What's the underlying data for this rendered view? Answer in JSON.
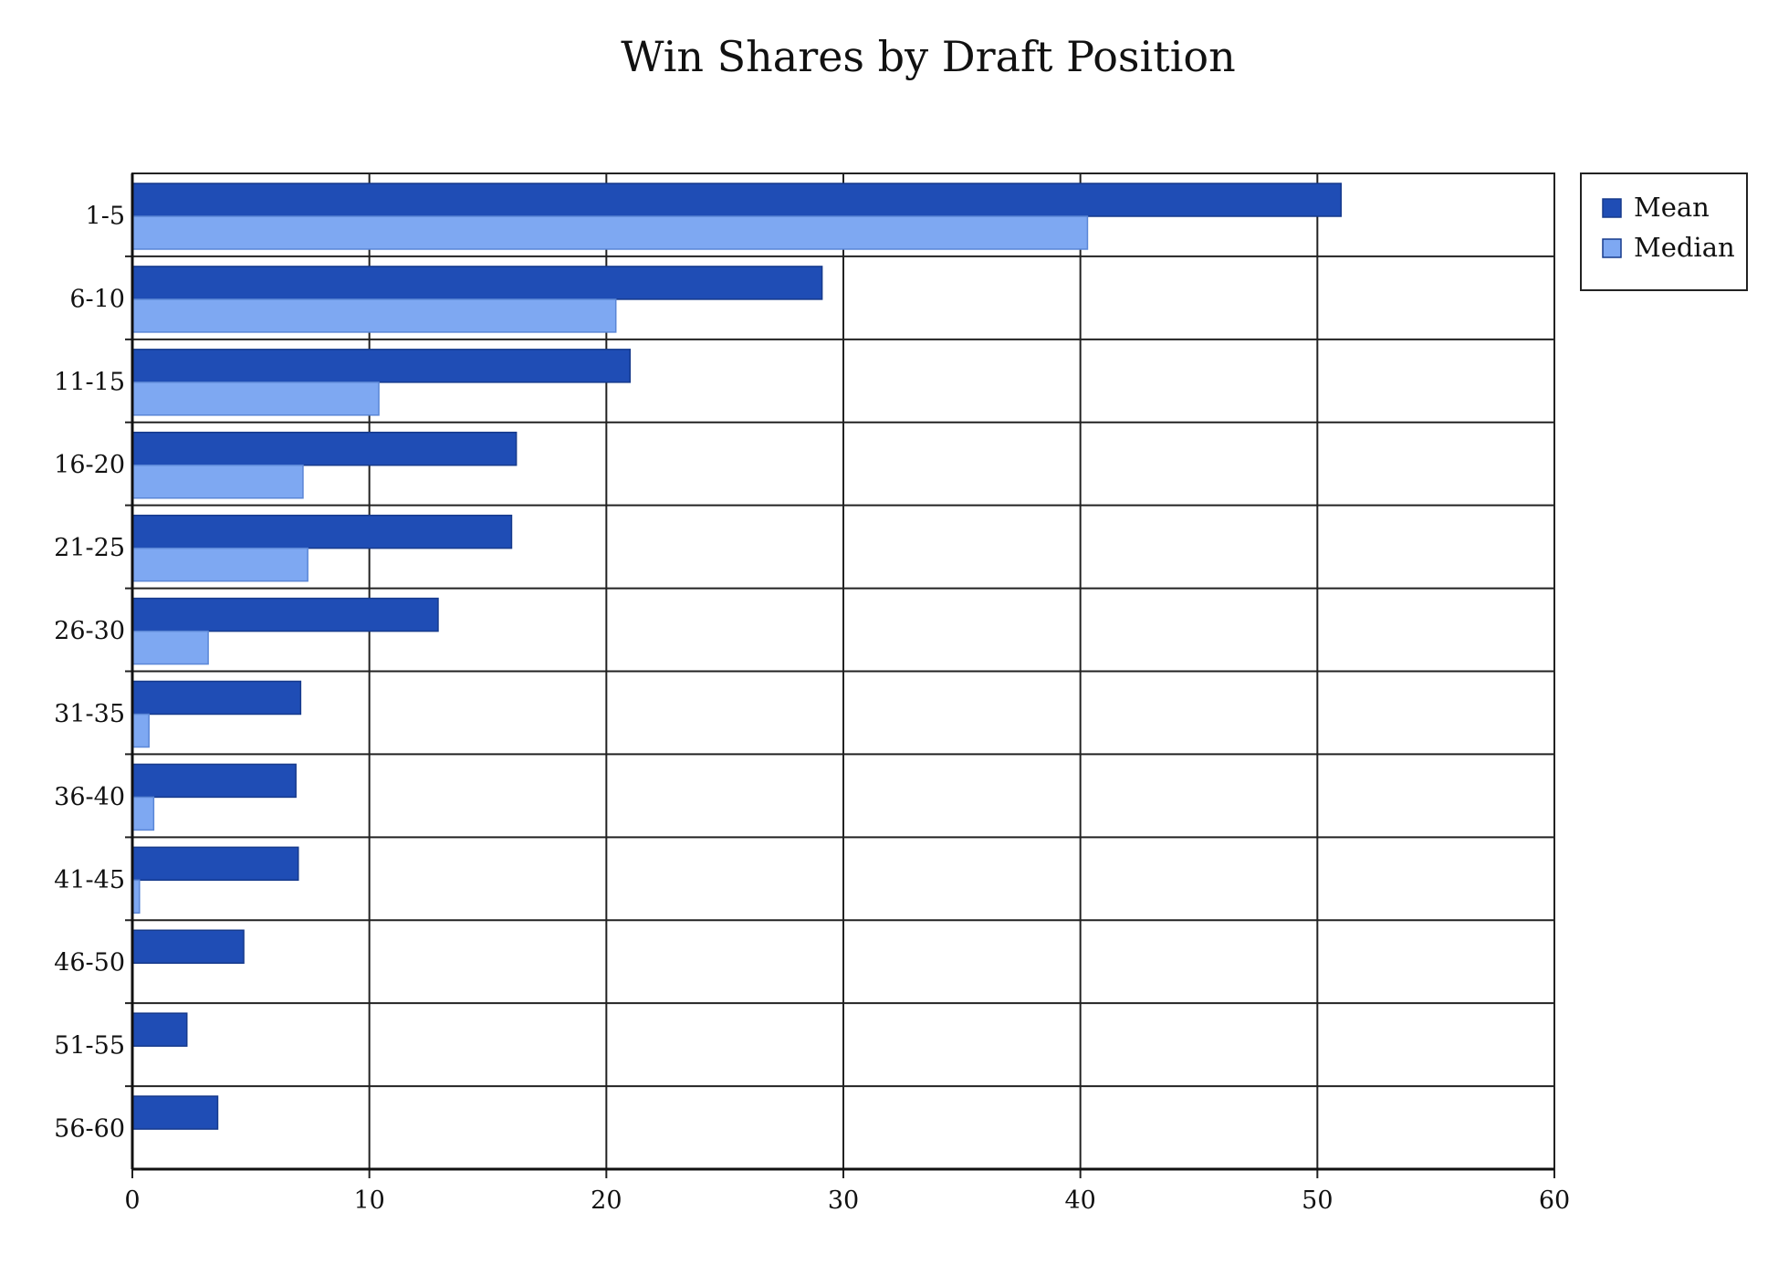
{
  "chart_data": {
    "type": "bar",
    "orientation": "horizontal",
    "title": "Win Shares by Draft Position",
    "xlabel": "",
    "ylabel": "",
    "xlim": [
      0,
      60
    ],
    "x_ticks": [
      "0",
      "10",
      "20",
      "30",
      "40",
      "50",
      "60"
    ],
    "grid": true,
    "legend_position": "top-right",
    "categories": [
      "1-5",
      "6-10",
      "11-15",
      "16-20",
      "21-25",
      "26-30",
      "31-35",
      "36-40",
      "41-45",
      "46-50",
      "51-55",
      "56-60"
    ],
    "series": [
      {
        "name": "Mean",
        "color": "#1f4db5",
        "values": [
          51.0,
          29.1,
          21.0,
          16.2,
          16.0,
          12.9,
          7.1,
          6.9,
          7.0,
          4.7,
          2.3,
          3.6
        ]
      },
      {
        "name": "Median",
        "color": "#7ea8f2",
        "values": [
          40.3,
          20.4,
          10.4,
          7.2,
          7.4,
          3.2,
          0.7,
          0.9,
          0.3,
          0,
          0,
          0
        ]
      }
    ]
  }
}
